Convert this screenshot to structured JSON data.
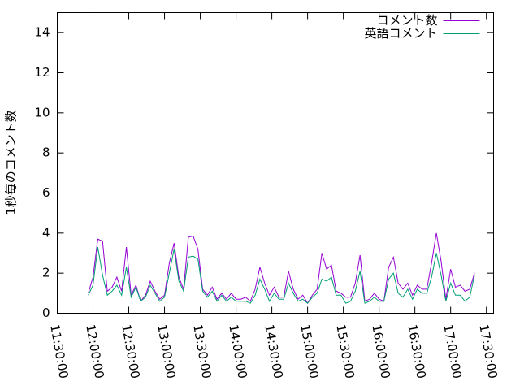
{
  "chart_data": {
    "type": "line",
    "y_label": "1秒毎のコメント数",
    "x": [
      "11:56:00",
      "12:00:00",
      "12:04:00",
      "12:08:00",
      "12:12:00",
      "12:16:00",
      "12:20:00",
      "12:24:00",
      "12:28:00",
      "12:32:00",
      "12:36:00",
      "12:40:00",
      "12:44:00",
      "12:48:00",
      "12:52:00",
      "12:56:00",
      "13:00:00",
      "13:04:00",
      "13:08:00",
      "13:12:00",
      "13:16:00",
      "13:20:00",
      "13:24:00",
      "13:28:00",
      "13:32:00",
      "13:36:00",
      "13:40:00",
      "13:44:00",
      "13:48:00",
      "13:52:00",
      "13:56:00",
      "14:00:00",
      "14:04:00",
      "14:08:00",
      "14:12:00",
      "14:16:00",
      "14:20:00",
      "14:24:00",
      "14:28:00",
      "14:32:00",
      "14:36:00",
      "14:40:00",
      "14:44:00",
      "14:48:00",
      "14:52:00",
      "14:56:00",
      "15:00:00",
      "15:04:00",
      "15:08:00",
      "15:12:00",
      "15:16:00",
      "15:20:00",
      "15:24:00",
      "15:28:00",
      "15:32:00",
      "15:36:00",
      "15:40:00",
      "15:44:00",
      "15:48:00",
      "15:52:00",
      "15:56:00",
      "16:00:00",
      "16:04:00",
      "16:08:00",
      "16:12:00",
      "16:16:00",
      "16:20:00",
      "16:24:00",
      "16:28:00",
      "16:32:00",
      "16:36:00",
      "16:40:00",
      "16:44:00",
      "16:48:00",
      "16:52:00",
      "16:56:00",
      "17:00:00",
      "17:04:00",
      "17:08:00",
      "17:12:00",
      "17:16:00",
      "17:20:00"
    ],
    "series": [
      {
        "name": "コメント数",
        "color": "#9400d3",
        "values": [
          1.0,
          1.8,
          3.7,
          3.6,
          1.1,
          1.3,
          1.8,
          1.1,
          3.3,
          0.9,
          1.4,
          0.6,
          0.9,
          1.6,
          1.1,
          0.7,
          0.9,
          2.5,
          3.5,
          1.8,
          1.2,
          3.8,
          3.85,
          3.2,
          1.2,
          0.9,
          1.3,
          0.7,
          1.0,
          0.7,
          1.0,
          0.7,
          0.7,
          0.8,
          0.6,
          1.2,
          2.3,
          1.5,
          0.9,
          1.3,
          0.8,
          0.8,
          2.1,
          1.2,
          0.7,
          0.9,
          0.5,
          0.9,
          1.2,
          3.0,
          2.2,
          2.4,
          1.1,
          1.0,
          0.8,
          0.8,
          1.5,
          2.9,
          0.6,
          0.7,
          1.0,
          0.7,
          0.6,
          2.3,
          2.8,
          1.5,
          1.2,
          1.5,
          0.9,
          1.4,
          1.2,
          1.2,
          2.5,
          4.0,
          2.6,
          0.7,
          2.2,
          1.3,
          1.4,
          1.1,
          1.2,
          2.0
        ]
      },
      {
        "name": "英語コメント",
        "color": "#009e73",
        "values": [
          0.9,
          1.4,
          3.3,
          1.9,
          0.9,
          1.1,
          1.4,
          0.9,
          2.3,
          0.8,
          1.3,
          0.6,
          0.8,
          1.4,
          1.0,
          0.6,
          0.8,
          2.0,
          3.2,
          1.6,
          1.1,
          2.8,
          2.85,
          2.7,
          1.1,
          0.8,
          1.1,
          0.6,
          0.9,
          0.6,
          0.8,
          0.6,
          0.6,
          0.6,
          0.5,
          0.9,
          1.7,
          1.2,
          0.6,
          1.0,
          0.7,
          0.7,
          1.5,
          1.0,
          0.6,
          0.7,
          0.5,
          0.8,
          1.0,
          1.7,
          1.6,
          1.8,
          0.9,
          0.9,
          0.5,
          0.6,
          1.1,
          2.1,
          0.5,
          0.6,
          0.8,
          0.6,
          0.6,
          1.7,
          2.0,
          1.0,
          0.8,
          1.2,
          0.7,
          1.2,
          1.0,
          1.0,
          1.8,
          3.0,
          1.9,
          0.6,
          1.5,
          0.9,
          0.9,
          0.6,
          0.8,
          1.9
        ]
      }
    ],
    "xlim": [
      "11:30:00",
      "17:36:00"
    ],
    "xticks": [
      "11:30:00",
      "12:00:00",
      "12:30:00",
      "13:00:00",
      "13:30:00",
      "14:00:00",
      "14:30:00",
      "15:00:00",
      "15:30:00",
      "16:00:00",
      "16:30:00",
      "17:00:00",
      "17:30:00"
    ],
    "ylim": [
      0,
      15
    ],
    "yticks": [
      0,
      2,
      4,
      6,
      8,
      10,
      12,
      14
    ],
    "legend": "top-right",
    "grid": false
  }
}
